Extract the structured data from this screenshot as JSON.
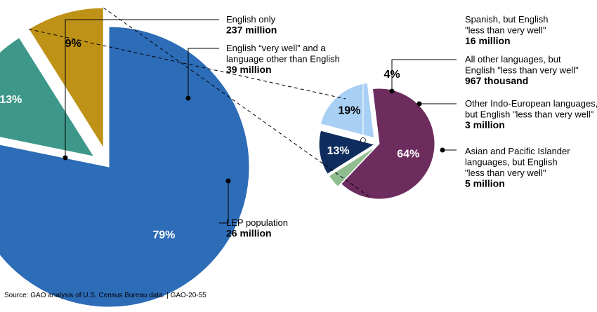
{
  "chart_data": [
    {
      "type": "pie",
      "title": "",
      "slices": [
        {
          "pct_label": "79%",
          "value": 79,
          "name": "English only",
          "amount": "237 million",
          "color": "#2d6cb7",
          "text_color": "#ffffff"
        },
        {
          "pct_label": "13%",
          "value": 13,
          "name_lines": [
            "English “very well” and a",
            "language other than English"
          ],
          "amount": "39 million",
          "color": "#3e9889",
          "text_color": "#ffffff"
        },
        {
          "pct_label": "9%",
          "value": 9,
          "name": "LEP population",
          "amount": "26 million",
          "color": "#be9216",
          "text_color": "#000000"
        }
      ]
    },
    {
      "type": "pie",
      "title": "",
      "slices": [
        {
          "pct_label": "64%",
          "value": 64,
          "name_lines": [
            "Spanish, but English",
            "\"less than very well\""
          ],
          "amount": "16 million",
          "color": "#6d2c5e",
          "text_color": "#ffffff"
        },
        {
          "pct_label": "4%",
          "value": 4,
          "name_lines": [
            "All other languages, but",
            "English \"less than very well\""
          ],
          "amount": "967 thousand",
          "color": "#8fbd8f",
          "text_color": "#000000"
        },
        {
          "pct_label": "13%",
          "value": 13,
          "name_lines": [
            "Other Indo-European languages,",
            "but English \"less than very well\""
          ],
          "amount": "3 million",
          "color": "#0e2d5e",
          "text_color": "#ffffff"
        },
        {
          "pct_label": "19%",
          "value": 19,
          "name_lines": [
            "Asian and Pacific Islander",
            "languages, but English",
            "\"less than very well\""
          ],
          "amount": "5 million",
          "color": "#a8d0f5",
          "text_color": "#000000"
        }
      ]
    }
  ],
  "source": "Source: GAO analysis of U.S. Census Bureau data.  |  GAO-20-55"
}
